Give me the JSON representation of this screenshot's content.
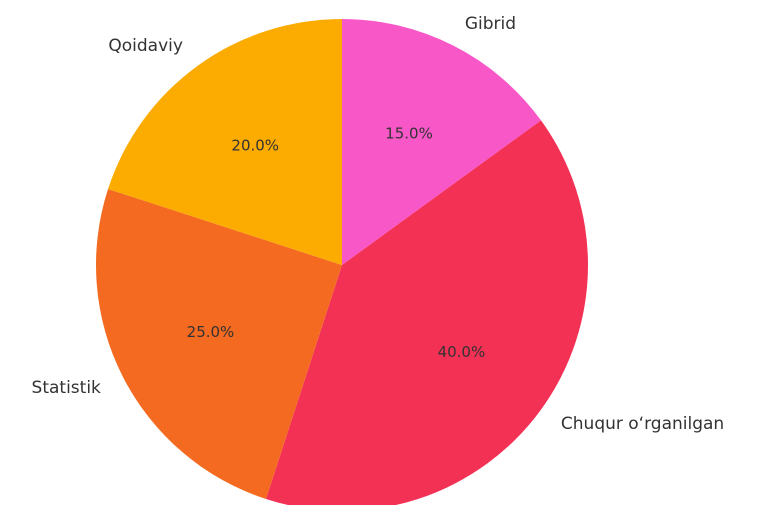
{
  "chart_data": {
    "type": "pie",
    "title": "",
    "start_angle_deg": 90,
    "direction": "clockwise",
    "slices": [
      {
        "label": "Gibrid",
        "value": 15.0,
        "pct_text": "15.0%",
        "color": "#f857c8"
      },
      {
        "label": "Chuqur o‘rganilgan",
        "value": 40.0,
        "pct_text": "40.0%",
        "color": "#f33155"
      },
      {
        "label": "Statistik",
        "value": 25.0,
        "pct_text": "25.0%",
        "color": "#f36a20"
      },
      {
        "label": "Qoidaviy",
        "value": 20.0,
        "pct_text": "20.0%",
        "color": "#fcab00"
      }
    ]
  }
}
